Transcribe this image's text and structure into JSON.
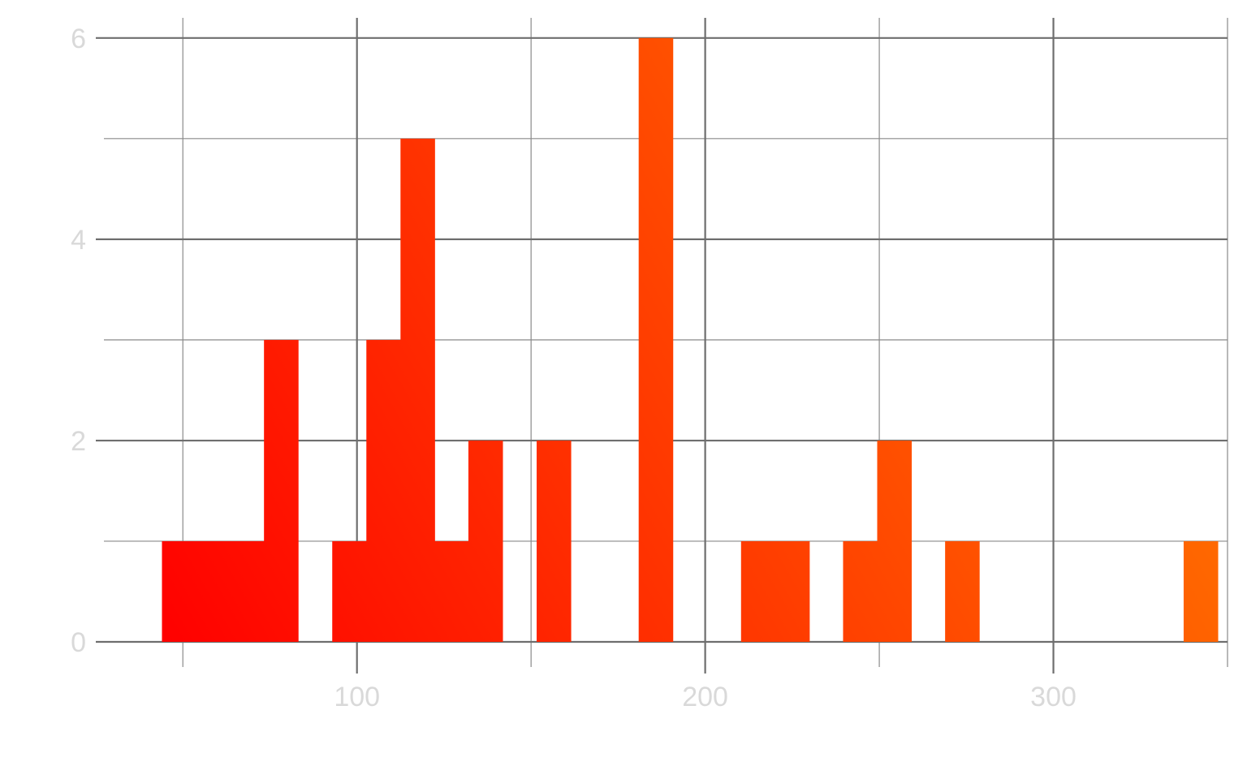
{
  "chart_data": {
    "type": "bar",
    "subtype": "histogram",
    "title": "",
    "xlabel": "",
    "ylabel": "",
    "xlim": [
      25,
      350
    ],
    "ylim": [
      -0.25,
      6.2
    ],
    "bin_width": 9.78,
    "bins": [
      {
        "x0": 44.0,
        "count": 1
      },
      {
        "x0": 53.8,
        "count": 1
      },
      {
        "x0": 63.6,
        "count": 1
      },
      {
        "x0": 73.3,
        "count": 3
      },
      {
        "x0": 92.9,
        "count": 1
      },
      {
        "x0": 102.7,
        "count": 3
      },
      {
        "x0": 112.5,
        "count": 5
      },
      {
        "x0": 122.2,
        "count": 1
      },
      {
        "x0": 132.0,
        "count": 2
      },
      {
        "x0": 151.6,
        "count": 2
      },
      {
        "x0": 180.9,
        "count": 6
      },
      {
        "x0": 210.3,
        "count": 1
      },
      {
        "x0": 220.1,
        "count": 1
      },
      {
        "x0": 239.6,
        "count": 1
      },
      {
        "x0": 249.4,
        "count": 2
      },
      {
        "x0": 268.9,
        "count": 1
      },
      {
        "x0": 337.4,
        "count": 1
      }
    ],
    "x_ticks": [
      100,
      200,
      300
    ],
    "y_ticks": [
      0,
      2,
      4,
      6
    ],
    "x_minor_ticks": [
      50,
      150,
      250,
      350
    ],
    "y_minor_ticks": [
      1,
      3,
      5
    ],
    "x_tick_labels": [
      "100",
      "200",
      "300"
    ],
    "y_tick_labels": [
      "0",
      "2",
      "4",
      "6"
    ],
    "grid": true,
    "legend": "none",
    "colors": {
      "fill_low": "#ff0000",
      "fill_high": "#ff7f00",
      "grid_major": "#6e6e6e",
      "grid_minor": "#8a8a8a",
      "tick_label": "#d9d9d9"
    }
  }
}
